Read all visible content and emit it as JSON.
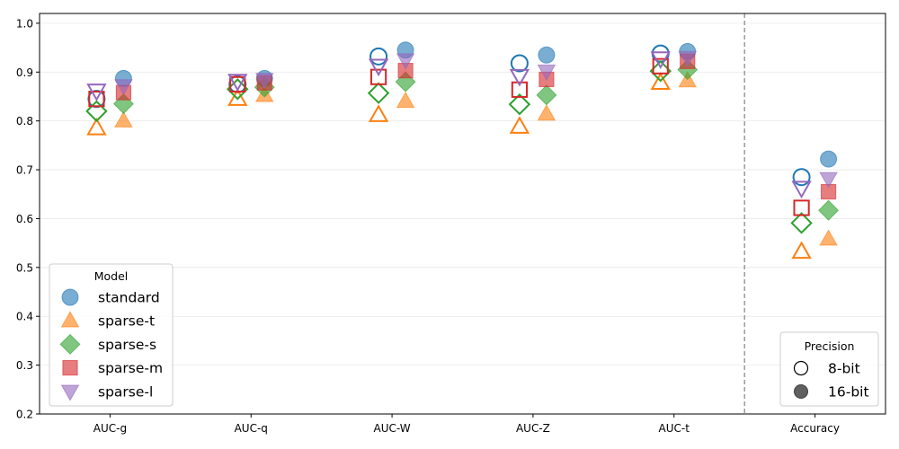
{
  "chart_data": {
    "type": "scatter",
    "categories": [
      "AUC-g",
      "AUC-q",
      "AUC-W",
      "AUC-Z",
      "AUC-t",
      "Accuracy"
    ],
    "ylim": [
      0.2,
      1.02
    ],
    "yticks": [
      "0.2",
      "0.3",
      "0.4",
      "0.5",
      "0.6",
      "0.7",
      "0.8",
      "0.9",
      "1.0"
    ],
    "ytick_values": [
      0.2,
      0.3,
      0.4,
      0.5,
      0.6,
      0.7,
      0.8,
      0.9,
      1.0
    ],
    "separator_after_category": "AUC-t",
    "series": [
      {
        "name": "standard",
        "marker": "circle",
        "color": "#1f77b4",
        "bit8": [
          0.845,
          0.875,
          0.932,
          0.918,
          0.938,
          0.685
        ],
        "bit16": [
          0.887,
          0.887,
          0.945,
          0.935,
          0.942,
          0.722
        ]
      },
      {
        "name": "sparse-t",
        "marker": "triangle-up",
        "color": "#ff7f0e",
        "bit8": [
          0.785,
          0.845,
          0.812,
          0.788,
          0.878,
          0.532
        ],
        "bit16": [
          0.8,
          0.852,
          0.84,
          0.814,
          0.882,
          0.558
        ]
      },
      {
        "name": "sparse-s",
        "marker": "diamond",
        "color": "#2ca02c",
        "bit8": [
          0.82,
          0.865,
          0.857,
          0.834,
          0.902,
          0.591
        ],
        "bit16": [
          0.835,
          0.869,
          0.88,
          0.853,
          0.905,
          0.617
        ]
      },
      {
        "name": "sparse-m",
        "marker": "square",
        "color": "#d62728",
        "bit8": [
          0.845,
          0.875,
          0.89,
          0.864,
          0.912,
          0.622
        ],
        "bit16": [
          0.858,
          0.878,
          0.903,
          0.885,
          0.922,
          0.655
        ]
      },
      {
        "name": "sparse-l",
        "marker": "triangle-down",
        "color": "#9467bd",
        "bit8": [
          0.862,
          0.882,
          0.913,
          0.892,
          0.928,
          0.663
        ],
        "bit16": [
          0.872,
          0.885,
          0.925,
          0.902,
          0.93,
          0.682
        ]
      }
    ],
    "legend_model": {
      "title": "Model",
      "placement": "lower-left",
      "entries": [
        "standard",
        "sparse-t",
        "sparse-s",
        "sparse-m",
        "sparse-l"
      ]
    },
    "legend_precision": {
      "title": "Precision",
      "placement": "lower-right",
      "entries": [
        "8-bit",
        "16-bit"
      ]
    }
  }
}
